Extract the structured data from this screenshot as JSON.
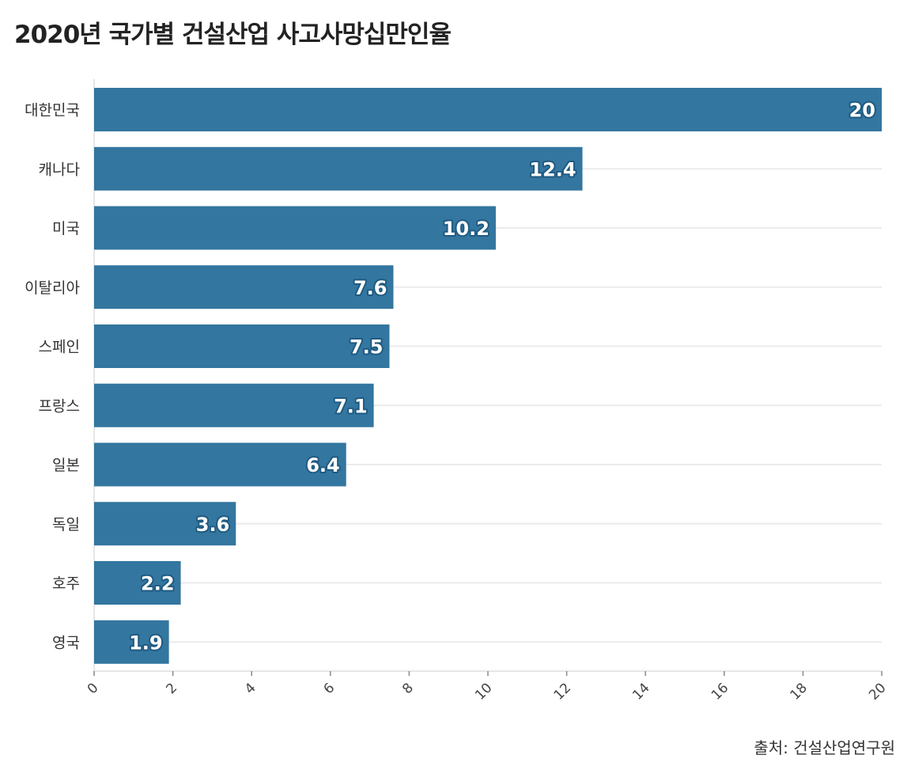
{
  "chart_data": {
    "type": "bar",
    "orientation": "horizontal",
    "title": "2020년 국가별 건설산업 사고사망십만인율",
    "categories": [
      "대한민국",
      "캐나다",
      "미국",
      "이탈리아",
      "스페인",
      "프랑스",
      "일본",
      "독일",
      "호주",
      "영국"
    ],
    "values": [
      20,
      12.4,
      10.2,
      7.6,
      7.5,
      7.1,
      6.4,
      3.6,
      2.2,
      1.9
    ],
    "value_labels": [
      "20",
      "12.4",
      "10.2",
      "7.6",
      "7.5",
      "7.1",
      "6.4",
      "3.6",
      "2.2",
      "1.9"
    ],
    "xlim": [
      0,
      20
    ],
    "x_ticks": [
      0,
      2,
      4,
      6,
      8,
      10,
      12,
      14,
      16,
      18,
      20
    ],
    "xlabel": "",
    "ylabel": "",
    "grid": true,
    "bar_color": "#33769f",
    "source": "출처: 건설산업연구원"
  }
}
